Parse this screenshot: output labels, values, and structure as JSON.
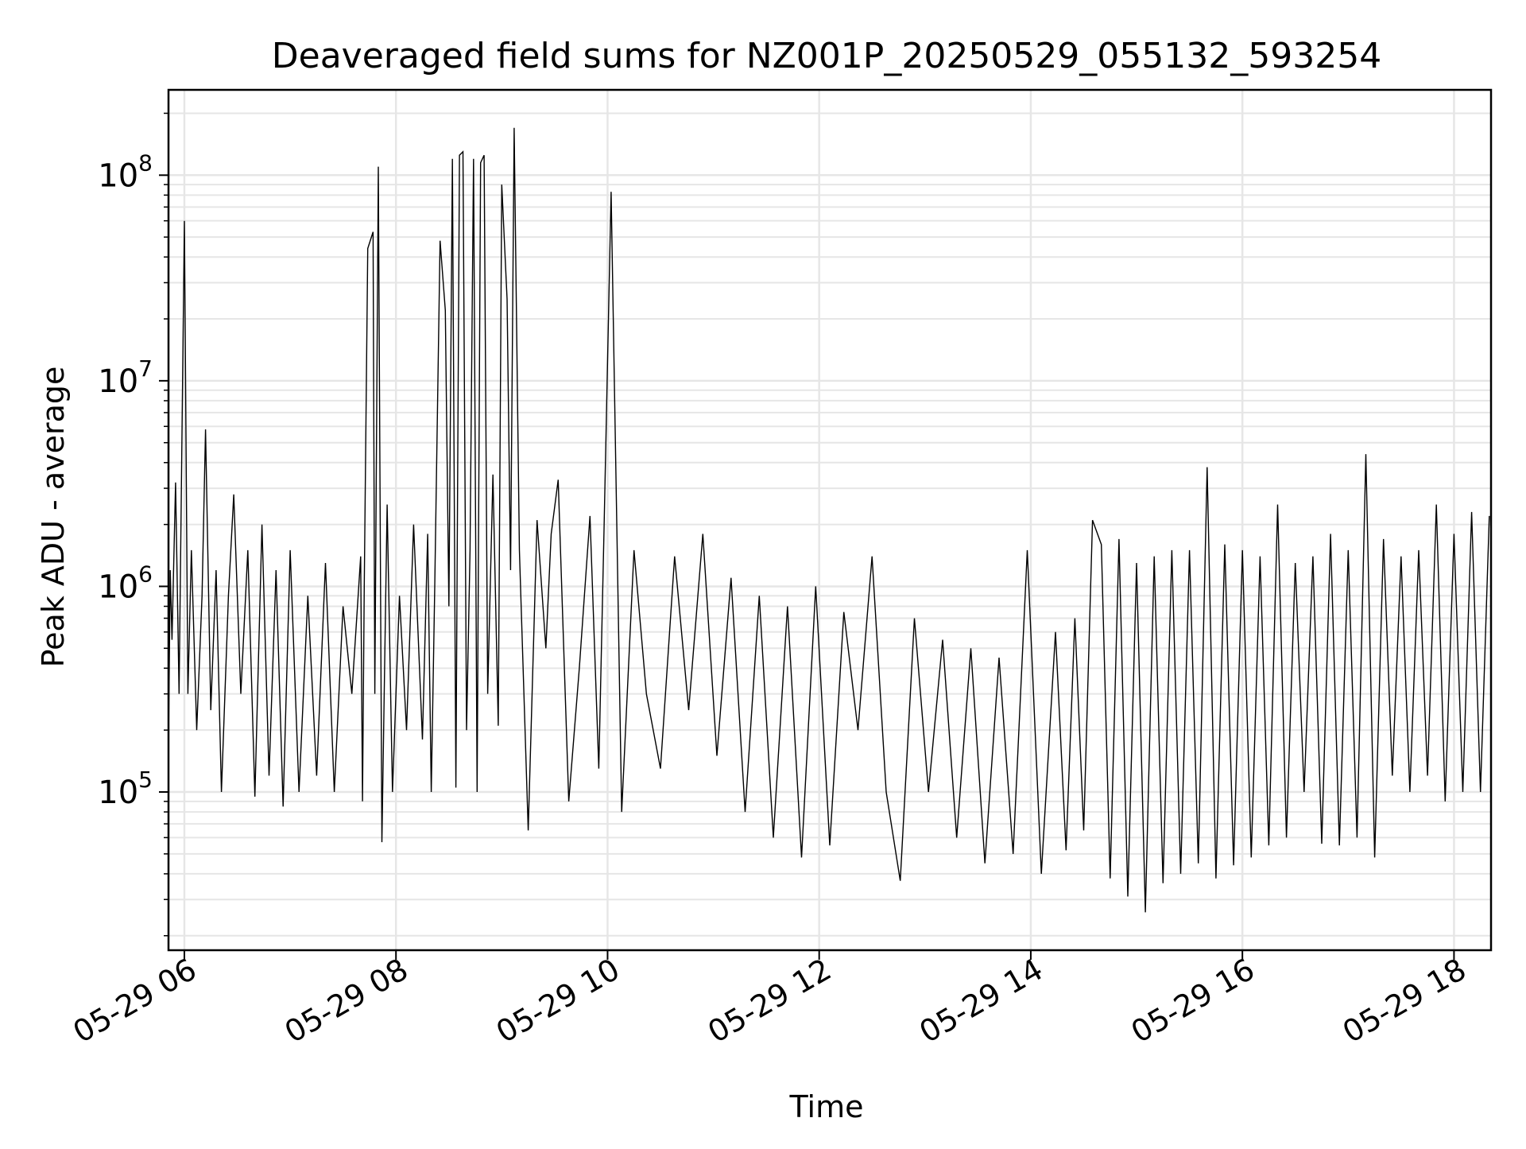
{
  "chart_data": {
    "type": "line",
    "title": "Deaveraged field sums for NZ001P_20250529_055132_593254",
    "xlabel": "Time",
    "ylabel": "Peak ADU - average",
    "x_start": "2025-05-29 05:51",
    "x_end": "2025-05-29 18:21",
    "xlim": [
      "2025-05-29 05:51",
      "2025-05-29 18:21"
    ],
    "x_ticks": [
      {
        "value": "2025-05-29 06:00",
        "label": "05-29 06"
      },
      {
        "value": "2025-05-29 08:00",
        "label": "05-29 08"
      },
      {
        "value": "2025-05-29 10:00",
        "label": "05-29 10"
      },
      {
        "value": "2025-05-29 12:00",
        "label": "05-29 12"
      },
      {
        "value": "2025-05-29 14:00",
        "label": "05-29 14"
      },
      {
        "value": "2025-05-29 16:00",
        "label": "05-29 16"
      },
      {
        "value": "2025-05-29 18:00",
        "label": "05-29 18"
      }
    ],
    "y_scale": "log",
    "ylim": [
      17000,
      260000000
    ],
    "y_ticks": [
      {
        "value": 100000,
        "base": "10",
        "exp": "5"
      },
      {
        "value": 1000000,
        "base": "10",
        "exp": "6"
      },
      {
        "value": 10000000,
        "base": "10",
        "exp": "7"
      },
      {
        "value": 100000000,
        "base": "10",
        "exp": "8"
      }
    ],
    "grid": true,
    "grid_color": "#e6e6e6",
    "line_color": "#000000",
    "series": [
      {
        "x": [
          "2025-05-29 05:51",
          "2025-05-29 05:52",
          "2025-05-29 05:53",
          "2025-05-29 05:55",
          "2025-05-29 05:57",
          "2025-05-29 06:00",
          "2025-05-29 06:02",
          "2025-05-29 06:04",
          "2025-05-29 06:07",
          "2025-05-29 06:10",
          "2025-05-29 06:12",
          "2025-05-29 06:15",
          "2025-05-29 06:18",
          "2025-05-29 06:21",
          "2025-05-29 06:25",
          "2025-05-29 06:28",
          "2025-05-29 06:32",
          "2025-05-29 06:36",
          "2025-05-29 06:40",
          "2025-05-29 06:44",
          "2025-05-29 06:48",
          "2025-05-29 06:52",
          "2025-05-29 06:56",
          "2025-05-29 07:00",
          "2025-05-29 07:05",
          "2025-05-29 07:10",
          "2025-05-29 07:15",
          "2025-05-29 07:20",
          "2025-05-29 07:25",
          "2025-05-29 07:30",
          "2025-05-29 07:35",
          "2025-05-29 07:40",
          "2025-05-29 07:41",
          "2025-05-29 07:42",
          "2025-05-29 07:44",
          "2025-05-29 07:47",
          "2025-05-29 07:48",
          "2025-05-29 07:50",
          "2025-05-29 07:52",
          "2025-05-29 07:55",
          "2025-05-29 07:58",
          "2025-05-29 08:02",
          "2025-05-29 08:06",
          "2025-05-29 08:10",
          "2025-05-29 08:15",
          "2025-05-29 08:18",
          "2025-05-29 08:20",
          "2025-05-29 08:22",
          "2025-05-29 08:25",
          "2025-05-29 08:28",
          "2025-05-29 08:30",
          "2025-05-29 08:32",
          "2025-05-29 08:34",
          "2025-05-29 08:36",
          "2025-05-29 08:38",
          "2025-05-29 08:40",
          "2025-05-29 08:42",
          "2025-05-29 08:44",
          "2025-05-29 08:46",
          "2025-05-29 08:48",
          "2025-05-29 08:50",
          "2025-05-29 08:52",
          "2025-05-29 08:55",
          "2025-05-29 08:58",
          "2025-05-29 09:00",
          "2025-05-29 09:03",
          "2025-05-29 09:05",
          "2025-05-29 09:07",
          "2025-05-29 09:10",
          "2025-05-29 09:15",
          "2025-05-29 09:20",
          "2025-05-29 09:25",
          "2025-05-29 09:28",
          "2025-05-29 09:32",
          "2025-05-29 09:38",
          "2025-05-29 09:44",
          "2025-05-29 09:50",
          "2025-05-29 09:55",
          "2025-05-29 09:58",
          "2025-05-29 10:02",
          "2025-05-29 10:08",
          "2025-05-29 10:15",
          "2025-05-29 10:22",
          "2025-05-29 10:30",
          "2025-05-29 10:38",
          "2025-05-29 10:46",
          "2025-05-29 10:54",
          "2025-05-29 11:02",
          "2025-05-29 11:10",
          "2025-05-29 11:18",
          "2025-05-29 11:26",
          "2025-05-29 11:34",
          "2025-05-29 11:42",
          "2025-05-29 11:50",
          "2025-05-29 11:58",
          "2025-05-29 12:06",
          "2025-05-29 12:14",
          "2025-05-29 12:22",
          "2025-05-29 12:30",
          "2025-05-29 12:38",
          "2025-05-29 12:46",
          "2025-05-29 12:54",
          "2025-05-29 13:02",
          "2025-05-29 13:10",
          "2025-05-29 13:18",
          "2025-05-29 13:26",
          "2025-05-29 13:34",
          "2025-05-29 13:42",
          "2025-05-29 13:50",
          "2025-05-29 13:58",
          "2025-05-29 14:06",
          "2025-05-29 14:14",
          "2025-05-29 14:20",
          "2025-05-29 14:25",
          "2025-05-29 14:30",
          "2025-05-29 14:35",
          "2025-05-29 14:40",
          "2025-05-29 14:45",
          "2025-05-29 14:50",
          "2025-05-29 14:55",
          "2025-05-29 15:00",
          "2025-05-29 15:05",
          "2025-05-29 15:10",
          "2025-05-29 15:15",
          "2025-05-29 15:20",
          "2025-05-29 15:25",
          "2025-05-29 15:30",
          "2025-05-29 15:35",
          "2025-05-29 15:40",
          "2025-05-29 15:45",
          "2025-05-29 15:50",
          "2025-05-29 15:55",
          "2025-05-29 16:00",
          "2025-05-29 16:05",
          "2025-05-29 16:10",
          "2025-05-29 16:15",
          "2025-05-29 16:20",
          "2025-05-29 16:25",
          "2025-05-29 16:30",
          "2025-05-29 16:35",
          "2025-05-29 16:40",
          "2025-05-29 16:45",
          "2025-05-29 16:50",
          "2025-05-29 16:55",
          "2025-05-29 17:00",
          "2025-05-29 17:05",
          "2025-05-29 17:10",
          "2025-05-29 17:15",
          "2025-05-29 17:20",
          "2025-05-29 17:25",
          "2025-05-29 17:30",
          "2025-05-29 17:35",
          "2025-05-29 17:40",
          "2025-05-29 17:45",
          "2025-05-29 17:50",
          "2025-05-29 17:55",
          "2025-05-29 18:00",
          "2025-05-29 18:05",
          "2025-05-29 18:10",
          "2025-05-29 18:15",
          "2025-05-29 18:20"
        ],
        "y": [
          170000,
          1200000,
          550000,
          3200000,
          300000,
          60000000,
          300000,
          1500000,
          200000,
          900000,
          5800000,
          250000,
          1200000,
          100000,
          900000,
          2800000,
          300000,
          1500000,
          95000,
          2000000,
          120000,
          1200000,
          85000,
          1500000,
          100000,
          900000,
          120000,
          1300000,
          100000,
          800000,
          300000,
          1400000,
          90000,
          1000000,
          44000000,
          53000000,
          300000,
          110000000,
          57000,
          2500000,
          100000,
          900000,
          200000,
          2000000,
          180000,
          1800000,
          100000,
          1000000,
          48000000,
          22000000,
          800000,
          120000000,
          105000,
          125000000,
          130000000,
          200000,
          1500000,
          120000000,
          100000,
          115000000,
          125000000,
          300000,
          3500000,
          210000,
          90000000,
          25000000,
          1200000,
          170000000,
          1500000,
          65000,
          2100000,
          500000,
          1800000,
          3300000,
          90000,
          400000,
          2200000,
          130000,
          1900000,
          83000000,
          80000,
          1500000,
          300000,
          130000,
          1400000,
          250000,
          1800000,
          150000,
          1100000,
          80000,
          900000,
          60000,
          800000,
          48000,
          1000000,
          55000,
          750000,
          200000,
          1400000,
          100000,
          37000,
          700000,
          100000,
          550000,
          60000,
          500000,
          45000,
          450000,
          50000,
          1500000,
          40000,
          600000,
          52000,
          700000,
          65000,
          2100000,
          1600000,
          38000,
          1700000,
          31000,
          1300000,
          26000,
          1400000,
          36000,
          1500000,
          40000,
          1500000,
          45000,
          3800000,
          38000,
          1600000,
          44000,
          1500000,
          48000,
          1400000,
          55000,
          2500000,
          60000,
          1300000,
          100000,
          1400000,
          56000,
          1800000,
          55000,
          1500000,
          60000,
          4400000,
          48000,
          1700000,
          120000,
          1400000,
          100000,
          1500000,
          120000,
          2500000,
          90000,
          1800000,
          100000,
          2300000,
          100000,
          2200000
        ]
      }
    ]
  }
}
